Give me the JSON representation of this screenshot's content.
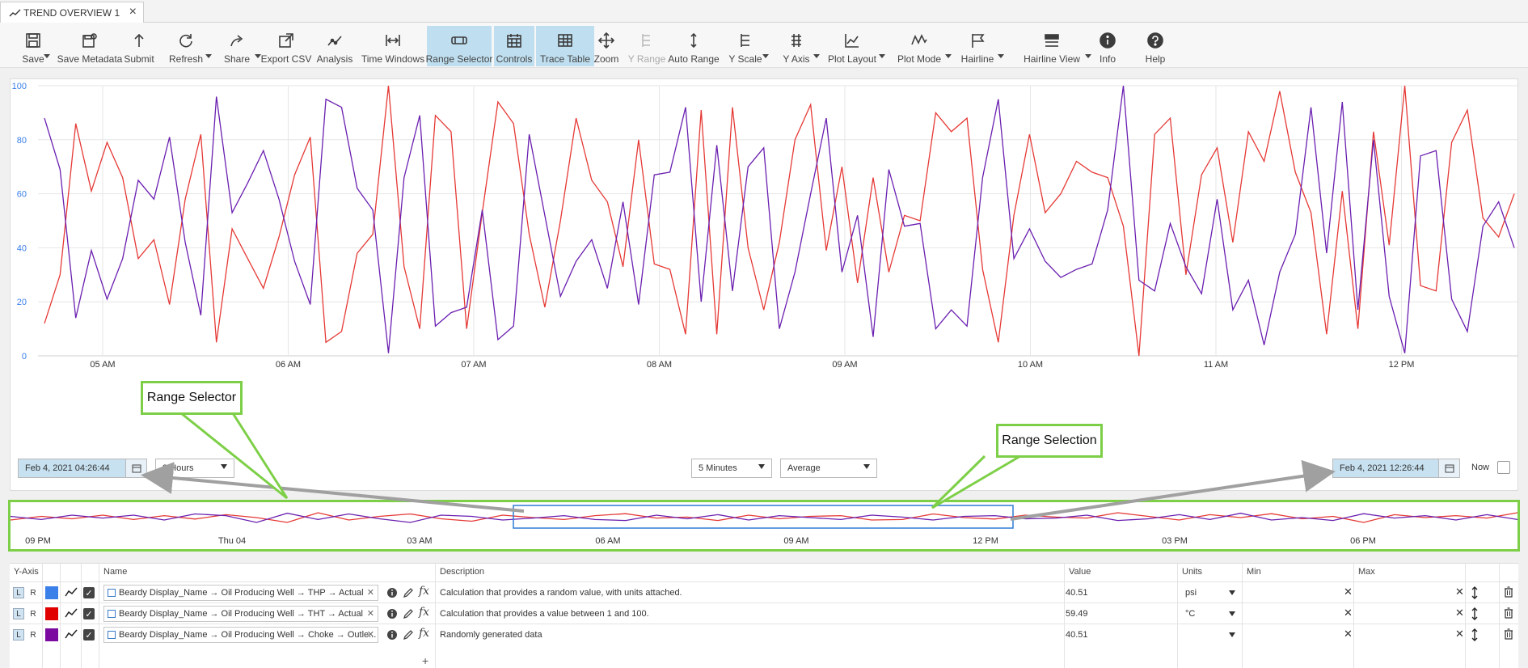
{
  "tab": {
    "title": "TREND OVERVIEW 1",
    "close": "×"
  },
  "toolbar": [
    {
      "label": "Save",
      "icon": "save-icon",
      "caret": true
    },
    {
      "label": "Save Metadata",
      "icon": "save-metadata-icon",
      "caret": false
    },
    {
      "label": "Submit",
      "icon": "submit-icon",
      "caret": false
    },
    {
      "label": "Refresh",
      "icon": "refresh-icon",
      "caret": true
    },
    {
      "label": "Share",
      "icon": "share-icon",
      "caret": true
    },
    {
      "label": "Export CSV",
      "icon": "export-icon",
      "caret": false
    },
    {
      "label": "Analysis",
      "icon": "analysis-icon",
      "caret": false
    },
    {
      "label": "Time Windows",
      "icon": "time-windows-icon",
      "caret": false
    },
    {
      "label": "Range Selector",
      "icon": "range-selector-icon",
      "caret": false,
      "active": true
    },
    {
      "label": "Controls",
      "icon": "calendar-icon",
      "caret": false,
      "active": true
    },
    {
      "label": "Trace Table",
      "icon": "table-icon",
      "caret": false,
      "active": true
    },
    {
      "label": "Zoom",
      "icon": "zoom-icon",
      "caret": false
    },
    {
      "label": "Y Range",
      "icon": "y-range-icon",
      "caret": false,
      "disabled": true
    },
    {
      "label": "Auto Range",
      "icon": "auto-range-icon",
      "caret": false
    },
    {
      "label": "Y Scale",
      "icon": "y-scale-icon",
      "caret": true
    },
    {
      "label": "Y Axis",
      "icon": "y-axis-icon",
      "caret": true
    },
    {
      "label": "Plot Layout",
      "icon": "plot-layout-icon",
      "caret": true
    },
    {
      "label": "Plot Mode",
      "icon": "plot-mode-icon",
      "caret": true
    },
    {
      "label": "Hairline",
      "icon": "hairline-icon",
      "caret": true
    },
    {
      "label": "Hairline View",
      "icon": "hairline-view-icon",
      "caret": true
    },
    {
      "label": "Info",
      "icon": "info-icon",
      "caret": false
    },
    {
      "label": "Help",
      "icon": "help-icon",
      "caret": false
    }
  ],
  "controls": {
    "start_date": "Feb 4, 2021 04:26:44",
    "duration": "8 Hours",
    "interval": "5 Minutes",
    "aggregate": "Average",
    "end_date": "Feb 4, 2021 12:26:44",
    "now_label": "Now"
  },
  "callouts": {
    "range_selector": "Range Selector",
    "range_selection": "Range Selection"
  },
  "chart_data": {
    "type": "line",
    "ylim": [
      0,
      100
    ],
    "y_ticks": [
      "0",
      "20",
      "40",
      "60",
      "80",
      "100"
    ],
    "x_ticks": [
      "05 AM",
      "06 AM",
      "07 AM",
      "08 AM",
      "09 AM",
      "10 AM",
      "11 AM",
      "12 PM"
    ],
    "grid": true,
    "series": [
      {
        "color": "#e53935",
        "values": [
          12,
          30,
          86,
          61,
          79,
          66,
          36,
          43,
          19,
          58,
          82,
          5,
          47,
          36,
          25,
          44,
          67,
          81,
          5,
          9,
          38,
          45,
          100,
          33,
          10,
          89,
          83,
          10,
          53,
          94,
          86,
          45,
          18,
          50,
          88,
          65,
          57,
          33,
          80,
          34,
          32,
          8,
          91,
          8,
          92,
          40,
          17,
          42,
          80,
          93,
          39,
          70,
          27,
          66,
          31,
          52,
          50,
          90,
          83,
          88,
          32,
          5,
          52,
          82,
          53,
          60,
          72,
          68,
          66,
          48,
          0,
          82,
          88,
          30,
          67,
          77,
          42,
          83,
          72,
          98,
          68,
          53,
          8,
          61,
          10,
          83,
          41,
          100,
          26,
          24,
          79,
          91,
          51,
          44,
          60
        ]
      },
      {
        "color": "#6a1fb0",
        "values": [
          88,
          69,
          14,
          39,
          21,
          36,
          65,
          58,
          81,
          42,
          15,
          96,
          53,
          64,
          76,
          58,
          35,
          19,
          95,
          92,
          62,
          54,
          1,
          66,
          89,
          11,
          16,
          18,
          54,
          6,
          11,
          82,
          52,
          22,
          35,
          43,
          25,
          57,
          19,
          67,
          68,
          92,
          20,
          78,
          24,
          70,
          77,
          10,
          31,
          60,
          88,
          31,
          52,
          7,
          69,
          48,
          49,
          10,
          17,
          11,
          66,
          95,
          36,
          47,
          35,
          29,
          32,
          34,
          54,
          100,
          28,
          24,
          49,
          33,
          23,
          58,
          17,
          28,
          4,
          31,
          45,
          92,
          38,
          94,
          17,
          80,
          22,
          1,
          74,
          76,
          21,
          9,
          48,
          57,
          40
        ]
      }
    ]
  },
  "range_chart": {
    "x_ticks": [
      "09 PM",
      "Thu 04",
      "03 AM",
      "06 AM",
      "09 AM",
      "12 PM",
      "03 PM",
      "06 PM"
    ],
    "series": [
      {
        "color": "#e53935",
        "values": [
          40,
          55,
          45,
          60,
          42,
          58,
          44,
          62,
          50,
          30,
          70,
          40,
          55,
          65,
          45,
          35,
          60,
          50,
          42,
          58,
          66,
          48,
          52,
          38,
          60,
          45,
          55,
          58,
          40,
          42,
          65,
          50,
          44,
          60,
          52,
          48,
          70,
          55,
          40,
          62,
          50,
          66,
          45,
          55,
          30,
          62,
          50,
          58,
          48,
          70
        ]
      },
      {
        "color": "#6a1fb0",
        "values": [
          55,
          42,
          60,
          48,
          60,
          40,
          65,
          58,
          30,
          68,
          42,
          65,
          45,
          30,
          60,
          55,
          40,
          48,
          58,
          42,
          38,
          60,
          45,
          62,
          40,
          58,
          50,
          42,
          60,
          52,
          40,
          55,
          58,
          45,
          48,
          60,
          38,
          45,
          62,
          42,
          68,
          40,
          50,
          38,
          66,
          48,
          58,
          40,
          62,
          42
        ]
      }
    ]
  },
  "details": {
    "headers": {
      "yaxis": "Y-Axis",
      "name": "Name",
      "description": "Description",
      "value": "Value",
      "units": "Units",
      "min": "Min",
      "max": "Max"
    },
    "rows": [
      {
        "l": "L",
        "r": "R",
        "color": "#3b7fe8",
        "name": "Beardy Display_Name → Oil Producing Well → THP → Actual",
        "description": "Calculation that provides a random value, with units attached.",
        "value": "40.51",
        "units": "psi"
      },
      {
        "l": "L",
        "r": "R",
        "color": "#e00000",
        "name": "Beardy Display_Name → Oil Producing Well → THT → Actual",
        "description": "Calculation that provides a value between 1 and 100.",
        "value": "59.49",
        "units": "°C"
      },
      {
        "l": "L",
        "r": "R",
        "color": "#7a0aa0",
        "name": "Beardy Display_Name → Oil Producing Well → Choke → Outle...",
        "description": "Randomly generated data",
        "value": "40.51",
        "units": ""
      }
    ],
    "add": "+"
  }
}
